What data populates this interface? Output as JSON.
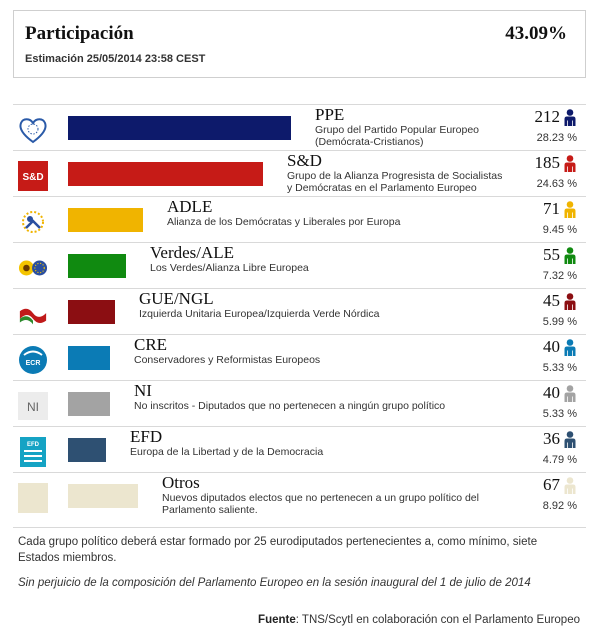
{
  "turnout": {
    "title": "Participación",
    "value": "43.09%",
    "estimate": "Estimación 25/05/2014 23:58 CEST"
  },
  "groups": [
    {
      "code": "PPE",
      "name_line1": "Grupo del Partido Popular Europeo",
      "name_line2": "(Demócrata-Cristianos)",
      "seats": "212",
      "pct": "28.23 %",
      "color": "#0d1a6b",
      "icon_color": "#0d1a6b",
      "share": 0.2823,
      "logo": "epp-heart-icon"
    },
    {
      "code": "S&D",
      "name_line1": "Grupo de la Alianza Progresista de Socialistas",
      "name_line2": "y Demócratas en el Parlamento Europeo",
      "seats": "185",
      "pct": "24.63 %",
      "color": "#c61b17",
      "icon_color": "#c61b17",
      "share": 0.2463,
      "logo": "sd-logo-icon",
      "logo_text": "S&D"
    },
    {
      "code": "ADLE",
      "name_line1": "Alianza de los Demócratas y Liberales por Europa",
      "name_line2": "",
      "seats": "71",
      "pct": "9.45 %",
      "color": "#f0b400",
      "icon_color": "#f0b400",
      "share": 0.0945,
      "logo": "alde-logo-icon"
    },
    {
      "code": "Verdes/ALE",
      "name_line1": "Los Verdes/Alianza Libre Europea",
      "name_line2": "",
      "seats": "55",
      "pct": "7.32 %",
      "color": "#108a10",
      "icon_color": "#108a10",
      "share": 0.0732,
      "logo": "greens-sunflower-icon"
    },
    {
      "code": "GUE/NGL",
      "name_line1": "Izquierda Unitaria Europea/Izquierda Verde Nórdica",
      "name_line2": "",
      "seats": "45",
      "pct": "5.99 %",
      "color": "#8b0e12",
      "icon_color": "#8b0e12",
      "share": 0.0599,
      "logo": "gue-flag-icon"
    },
    {
      "code": "CRE",
      "name_line1": "Conservadores y Reformistas Europeos",
      "name_line2": "",
      "seats": "40",
      "pct": "5.33 %",
      "color": "#0b7bb5",
      "icon_color": "#0b7bb5",
      "share": 0.0533,
      "logo": "ecr-logo-icon",
      "logo_text": "ECR"
    },
    {
      "code": "NI",
      "name_line1": "No inscritos - Diputados que no pertenecen a ningún grupo político",
      "name_line2": "",
      "seats": "40",
      "pct": "5.33 %",
      "color": "#a3a3a3",
      "icon_color": "#a3a3a3",
      "share": 0.0533,
      "logo": "ni-logo-icon",
      "logo_text": "NI"
    },
    {
      "code": "EFD",
      "name_line1": "Europa de la Libertad y de la Democracia",
      "name_line2": "",
      "seats": "36",
      "pct": "4.79 %",
      "color": "#2e5072",
      "icon_color": "#2e5072",
      "share": 0.0479,
      "logo": "efd-logo-icon",
      "logo_text": "EFD"
    },
    {
      "code": "Otros",
      "name_line1": "Nuevos diputados electos que no pertenecen a un grupo político del",
      "name_line2": "Parlamento saliente.",
      "seats": "67",
      "pct": "8.92 %",
      "color": "#ece6cf",
      "icon_color": "#ece6cf",
      "share": 0.0892,
      "logo": "others-logo-icon"
    }
  ],
  "notes": {
    "composition": "Cada grupo político deberá estar formado por 25 eurodiputados pertenecientes a, como mínimo, siete Estados miembros.",
    "disclaimer": "Sin perjuicio de la composición del Parlamento Europeo en la sesión inaugural del 1 de julio de 2014",
    "source_label": "Fuente",
    "source_text": ": TNS/Scytl en colaboración con el Parlamento Europeo"
  }
}
